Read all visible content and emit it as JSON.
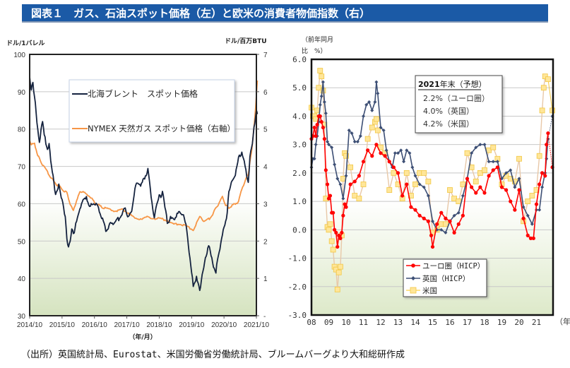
{
  "title": "図表１　ガス、石油スポット価格（左）と欧米の消費者物価指数（右）",
  "source": "（出所）英国統計局、Eurostat、米国労働省労働統計局、ブルームバーグより大和総研作成",
  "colors": {
    "title_bg": "#1b5aa6",
    "brent": "#15233f",
    "gas": "#f79646",
    "euro": "#ff0000",
    "uk": "#3d4f75",
    "us": "#ffd966"
  },
  "chart_data": [
    {
      "type": "line",
      "title": "ガス、石油スポット価格",
      "xlabel": "（年/月）",
      "ylabel_left": "ドル/1バレル",
      "ylabel_right": "ドル/百万BTU",
      "ylim_left": [
        30,
        100
      ],
      "ylim_right": [
        0,
        7
      ],
      "yticks_left": [
        "100",
        "90",
        "80",
        "70",
        "60",
        "50",
        "40",
        "30"
      ],
      "yticks_right": [
        "7",
        "6",
        "5",
        "4",
        "3",
        "2",
        "1",
        "-"
      ],
      "xticks": [
        "2014/10",
        "2015/10",
        "2016/10",
        "2017/10",
        "2018/10",
        "2019/10",
        "2020/10",
        "2021/10"
      ],
      "grid": true,
      "legend_position": "top-center",
      "series": [
        {
          "name": "北海ブレント　スポット価格",
          "axis": "left",
          "x": [
            2014.75,
            2014.8,
            2014.85,
            2014.9,
            2014.95,
            2015.0,
            2015.05,
            2015.1,
            2015.15,
            2015.2,
            2015.25,
            2015.3,
            2015.35,
            2015.4,
            2015.45,
            2015.5,
            2015.55,
            2015.6,
            2015.65,
            2015.7,
            2015.75,
            2015.8,
            2015.85,
            2015.9,
            2015.95,
            2016.0,
            2016.05,
            2016.1,
            2016.2,
            2016.3,
            2016.4,
            2016.5,
            2016.6,
            2016.7,
            2016.8,
            2016.9,
            2017.0,
            2017.1,
            2017.2,
            2017.3,
            2017.4,
            2017.5,
            2017.6,
            2017.7,
            2017.8,
            2017.9,
            2018.0,
            2018.1,
            2018.2,
            2018.3,
            2018.4,
            2018.5,
            2018.6,
            2018.7,
            2018.75,
            2018.8,
            2018.85,
            2018.9,
            2018.95,
            2019.0,
            2019.1,
            2019.2,
            2019.3,
            2019.4,
            2019.5,
            2019.6,
            2019.7,
            2019.8,
            2019.9,
            2020.0,
            2020.05,
            2020.1,
            2020.15,
            2020.2,
            2020.25,
            2020.3,
            2020.35,
            2020.4,
            2020.5,
            2020.6,
            2020.7,
            2020.8,
            2020.85,
            2020.9,
            2020.95,
            2021.0,
            2021.1,
            2021.2,
            2021.3,
            2021.4,
            2021.5,
            2021.55,
            2021.6,
            2021.65,
            2021.7,
            2021.75,
            2021.78
          ],
          "values": [
            94,
            91,
            92,
            89,
            84,
            80,
            76,
            80,
            82,
            79,
            76,
            75,
            76,
            72,
            68,
            66,
            62,
            64,
            65,
            63,
            61,
            59,
            56,
            51,
            48,
            50,
            53,
            52,
            55,
            59,
            61,
            62,
            59,
            60,
            60,
            58,
            56,
            53,
            54,
            55,
            55,
            56,
            57,
            59,
            56,
            58,
            64,
            66,
            65,
            67,
            69,
            62,
            56,
            61,
            62,
            62,
            63,
            61,
            58,
            55,
            56,
            56,
            57,
            58,
            57,
            53,
            45,
            38,
            40,
            37,
            39,
            42,
            44,
            46,
            48,
            49,
            46,
            44,
            42,
            47,
            52,
            55,
            58,
            63,
            65,
            66,
            68,
            72,
            74,
            70,
            66,
            72,
            75,
            78,
            82,
            85,
            84
          ]
        },
        {
          "name": "NYMEX 天然ガス スポット価格（右軸）",
          "axis": "right",
          "x": [
            2014.75,
            2014.8,
            2014.9,
            2015.0,
            2015.1,
            2015.2,
            2015.3,
            2015.4,
            2015.5,
            2015.6,
            2015.7,
            2015.8,
            2015.9,
            2016.0,
            2016.1,
            2016.2,
            2016.3,
            2016.4,
            2016.5,
            2016.6,
            2016.7,
            2016.8,
            2016.9,
            2017.0,
            2017.2,
            2017.4,
            2017.6,
            2017.8,
            2018.0,
            2018.2,
            2018.4,
            2018.6,
            2018.8,
            2019.0,
            2019.2,
            2019.4,
            2019.6,
            2019.8,
            2020.0,
            2020.1,
            2020.2,
            2020.3,
            2020.4,
            2020.5,
            2020.6,
            2020.7,
            2020.8,
            2020.9,
            2021.0,
            2021.1,
            2021.2,
            2021.3,
            2021.4,
            2021.5,
            2021.55,
            2021.6,
            2021.65,
            2021.7,
            2021.75,
            2021.78
          ],
          "values": [
            4.7,
            4.6,
            4.6,
            4.3,
            4.1,
            4.0,
            3.85,
            3.7,
            3.6,
            3.5,
            3.45,
            3.35,
            3.3,
            3.0,
            2.8,
            3.1,
            3.3,
            3.35,
            3.25,
            3.2,
            3.1,
            3.0,
            2.95,
            2.9,
            2.85,
            2.8,
            2.85,
            2.75,
            2.6,
            2.6,
            2.65,
            2.6,
            2.6,
            2.55,
            2.45,
            2.45,
            2.4,
            2.3,
            2.65,
            2.55,
            2.55,
            2.6,
            2.7,
            2.9,
            3.0,
            3.2,
            2.95,
            2.9,
            2.95,
            3.0,
            3.05,
            3.4,
            3.6,
            3.8,
            4.1,
            4.4,
            4.8,
            5.3,
            5.9,
            6.3
          ]
        }
      ]
    },
    {
      "type": "line",
      "title": "欧米の消費者物価指数",
      "ylabel": "（前年同月比　%）",
      "xlabel": "（年）",
      "ylim": [
        -3.0,
        6.0
      ],
      "yticks": [
        "6.0",
        "5.0",
        "4.0",
        "3.0",
        "2.0",
        "1.0",
        "0.0",
        "-1.0",
        "-2.0",
        "-3.0"
      ],
      "xticks": [
        "08",
        "09",
        "10",
        "11",
        "12",
        "13",
        "14",
        "15",
        "16",
        "17",
        "18",
        "19",
        "20",
        "21"
      ],
      "grid": true,
      "legend_position": "bottom-center",
      "annotation": {
        "heading_year": "2021",
        "heading_rest": "年末（予想）",
        "lines": [
          "2.2%（ユーロ圏）",
          "4.0%（英国）",
          "4.2%（米国）"
        ]
      },
      "series": [
        {
          "name": "ユーロ圏（HICP）",
          "marker": "circle",
          "x": [
            2008.0,
            2008.08,
            2008.17,
            2008.25,
            2008.33,
            2008.42,
            2008.5,
            2008.58,
            2008.67,
            2008.75,
            2008.83,
            2008.92,
            2009.0,
            2009.08,
            2009.17,
            2009.25,
            2009.33,
            2009.42,
            2009.5,
            2009.58,
            2009.67,
            2009.75,
            2009.83,
            2009.92,
            2010.0,
            2010.25,
            2010.5,
            2010.75,
            2011.0,
            2011.25,
            2011.5,
            2011.75,
            2012.0,
            2012.25,
            2012.5,
            2012.75,
            2013.0,
            2013.25,
            2013.5,
            2013.75,
            2014.0,
            2014.25,
            2014.5,
            2014.75,
            2014.92,
            2015.0,
            2015.25,
            2015.5,
            2015.75,
            2016.0,
            2016.25,
            2016.5,
            2016.75,
            2017.0,
            2017.25,
            2017.5,
            2017.75,
            2018.0,
            2018.25,
            2018.5,
            2018.75,
            2019.0,
            2019.25,
            2019.5,
            2019.75,
            2020.0,
            2020.25,
            2020.5,
            2020.67,
            2020.83,
            2021.0,
            2021.17,
            2021.33,
            2021.5,
            2021.58,
            2021.67,
            2021.92
          ],
          "values": [
            3.2,
            3.3,
            3.6,
            3.3,
            3.7,
            4.0,
            4.0,
            3.8,
            3.6,
            3.2,
            2.1,
            1.6,
            1.1,
            1.2,
            0.6,
            0.6,
            0.0,
            -0.1,
            -0.6,
            -0.2,
            -0.3,
            -0.1,
            0.5,
            0.9,
            0.8,
            1.6,
            1.7,
            1.9,
            2.4,
            2.8,
            2.6,
            3.0,
            2.7,
            2.6,
            2.4,
            2.2,
            2.0,
            1.2,
            1.6,
            0.8,
            0.7,
            0.5,
            0.4,
            0.3,
            -0.2,
            -0.6,
            0.2,
            0.6,
            0.4,
            0.3,
            -0.1,
            0.2,
            0.5,
            1.8,
            1.5,
            1.3,
            1.5,
            1.3,
            1.9,
            2.1,
            2.2,
            1.5,
            1.4,
            1.0,
            0.7,
            1.4,
            0.4,
            -0.2,
            -0.3,
            -0.3,
            0.9,
            1.6,
            2.0,
            1.9,
            3.0,
            3.4,
            2.2
          ]
        },
        {
          "name": "英国（HICP）",
          "marker": "diamond",
          "x": [
            2008.0,
            2008.08,
            2008.17,
            2008.25,
            2008.33,
            2008.42,
            2008.5,
            2008.58,
            2008.67,
            2008.75,
            2008.83,
            2008.92,
            2009.0,
            2009.17,
            2009.33,
            2009.5,
            2009.67,
            2009.83,
            2010.0,
            2010.17,
            2010.33,
            2010.5,
            2010.67,
            2010.83,
            2011.0,
            2011.17,
            2011.33,
            2011.5,
            2011.67,
            2011.75,
            2011.83,
            2012.0,
            2012.17,
            2012.33,
            2012.5,
            2012.67,
            2012.83,
            2013.0,
            2013.17,
            2013.33,
            2013.5,
            2013.67,
            2013.83,
            2014.0,
            2014.25,
            2014.5,
            2014.75,
            2015.0,
            2015.25,
            2015.5,
            2015.75,
            2016.0,
            2016.25,
            2016.5,
            2016.75,
            2017.0,
            2017.25,
            2017.5,
            2017.75,
            2018.0,
            2018.25,
            2018.5,
            2018.75,
            2019.0,
            2019.25,
            2019.5,
            2019.75,
            2020.0,
            2020.25,
            2020.5,
            2020.75,
            2021.0,
            2021.17,
            2021.33,
            2021.5,
            2021.58,
            2021.67,
            2021.92
          ],
          "values": [
            2.2,
            2.5,
            2.5,
            3.0,
            3.3,
            3.8,
            4.4,
            4.7,
            5.2,
            4.5,
            4.1,
            3.1,
            3.0,
            2.9,
            2.3,
            1.8,
            1.6,
            1.1,
            1.9,
            3.5,
            3.4,
            3.1,
            3.1,
            3.3,
            4.0,
            4.4,
            4.5,
            4.2,
            4.5,
            5.2,
            4.8,
            3.6,
            3.5,
            2.8,
            2.4,
            2.2,
            2.7,
            2.7,
            2.8,
            2.4,
            2.8,
            2.7,
            2.2,
            1.9,
            1.6,
            1.5,
            1.2,
            0.3,
            0.0,
            0.0,
            -0.1,
            0.3,
            0.5,
            0.6,
            1.2,
            1.8,
            2.7,
            2.9,
            3.0,
            3.0,
            2.4,
            2.4,
            2.4,
            1.8,
            2.0,
            2.1,
            1.5,
            1.8,
            0.8,
            0.5,
            0.2,
            0.7,
            0.7,
            1.5,
            2.0,
            2.5,
            3.2,
            4.0
          ]
        },
        {
          "name": "米国",
          "marker": "square",
          "x": [
            2008.0,
            2008.08,
            2008.17,
            2008.25,
            2008.33,
            2008.42,
            2008.5,
            2008.58,
            2008.67,
            2008.75,
            2008.83,
            2008.92,
            2009.0,
            2009.08,
            2009.17,
            2009.25,
            2009.33,
            2009.42,
            2009.5,
            2009.58,
            2009.67,
            2009.75,
            2009.83,
            2009.92,
            2010.0,
            2010.25,
            2010.5,
            2010.75,
            2011.0,
            2011.25,
            2011.5,
            2011.67,
            2011.75,
            2011.83,
            2012.0,
            2012.25,
            2012.5,
            2012.75,
            2013.0,
            2013.25,
            2013.5,
            2013.75,
            2014.0,
            2014.25,
            2014.5,
            2014.75,
            2015.0,
            2015.25,
            2015.5,
            2015.75,
            2016.0,
            2016.25,
            2016.5,
            2016.75,
            2017.0,
            2017.25,
            2017.5,
            2017.75,
            2018.0,
            2018.25,
            2018.5,
            2018.75,
            2019.0,
            2019.25,
            2019.5,
            2019.75,
            2020.0,
            2020.25,
            2020.5,
            2020.75,
            2021.0,
            2021.17,
            2021.33,
            2021.42,
            2021.5,
            2021.67,
            2021.92
          ],
          "values": [
            4.3,
            4.0,
            4.0,
            3.9,
            4.2,
            5.0,
            5.6,
            5.4,
            4.9,
            3.7,
            1.1,
            0.1,
            0.0,
            0.2,
            -0.4,
            -0.7,
            -1.3,
            -1.4,
            -2.1,
            -1.5,
            -1.3,
            -0.2,
            1.8,
            2.7,
            2.6,
            2.2,
            1.2,
            1.1,
            1.6,
            3.2,
            3.6,
            3.8,
            3.9,
            3.5,
            2.9,
            2.7,
            1.4,
            2.0,
            1.6,
            1.1,
            2.0,
            1.2,
            1.6,
            2.0,
            2.0,
            1.7,
            -0.1,
            0.0,
            0.2,
            0.2,
            1.4,
            1.1,
            1.0,
            1.6,
            2.7,
            2.2,
            1.7,
            2.0,
            2.1,
            2.8,
            2.9,
            2.5,
            1.6,
            1.9,
            1.8,
            1.7,
            2.5,
            0.3,
            1.0,
            1.2,
            1.4,
            2.6,
            4.2,
            5.0,
            5.4,
            5.3,
            4.2
          ]
        }
      ]
    }
  ]
}
